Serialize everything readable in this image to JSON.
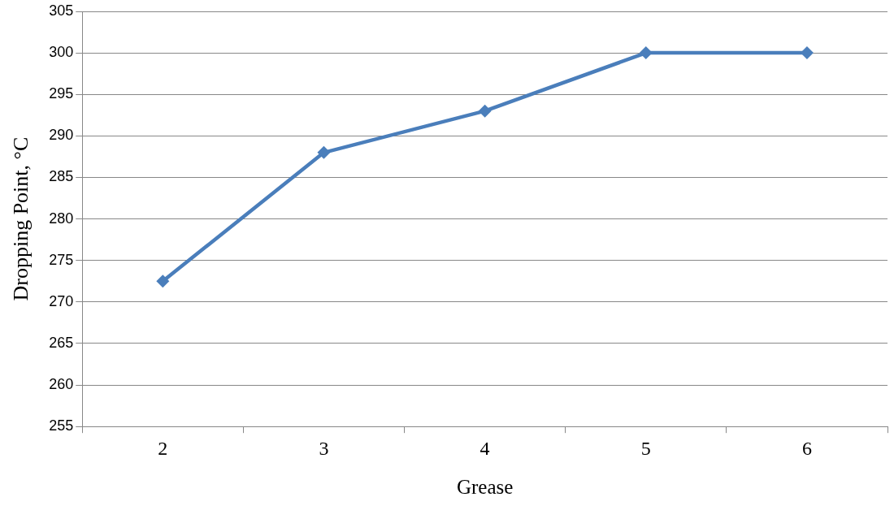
{
  "chart_data": {
    "type": "line",
    "xlabel": "Grease",
    "ylabel": "Dropping Point, °C",
    "categories": [
      "2",
      "3",
      "4",
      "5",
      "6"
    ],
    "series": [
      {
        "color": "#4a7ebb",
        "values": [
          272.5,
          288,
          293,
          300,
          300
        ]
      }
    ],
    "ylim": [
      255,
      305
    ],
    "yticks": [
      255,
      260,
      265,
      270,
      275,
      280,
      285,
      290,
      295,
      300,
      305
    ],
    "grid": "y",
    "legend": false,
    "marker": "diamond",
    "line_style": "solid"
  }
}
